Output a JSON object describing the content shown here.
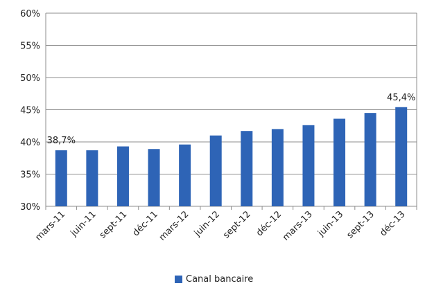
{
  "chart_data": {
    "type": "bar",
    "categories": [
      "mars-11",
      "juin-11",
      "sept-11",
      "déc-11",
      "mars-12",
      "juin-12",
      "sept-12",
      "déc-12",
      "mars-13",
      "juin-13",
      "sept-13",
      "déc-13"
    ],
    "series": [
      {
        "name": "Canal bancaire",
        "values": [
          38.7,
          38.7,
          39.3,
          38.9,
          39.6,
          41.0,
          41.7,
          42.0,
          42.6,
          43.6,
          44.5,
          45.4
        ],
        "color": "#2E64B6"
      }
    ],
    "data_labels": [
      {
        "index": 0,
        "text": "38,7%"
      },
      {
        "index": 11,
        "text": "45,4%"
      }
    ],
    "y_ticks": [
      {
        "value": 30,
        "label": "30%"
      },
      {
        "value": 35,
        "label": "35%"
      },
      {
        "value": 40,
        "label": "40%"
      },
      {
        "value": 45,
        "label": "45%"
      },
      {
        "value": 50,
        "label": "50%"
      },
      {
        "value": 55,
        "label": "55%"
      },
      {
        "value": 60,
        "label": "60%"
      }
    ],
    "ylim": [
      30,
      60
    ],
    "grid": true,
    "legend_position": "bottom"
  },
  "legend": {
    "label": "Canal bancaire",
    "color": "#2E64B6"
  }
}
